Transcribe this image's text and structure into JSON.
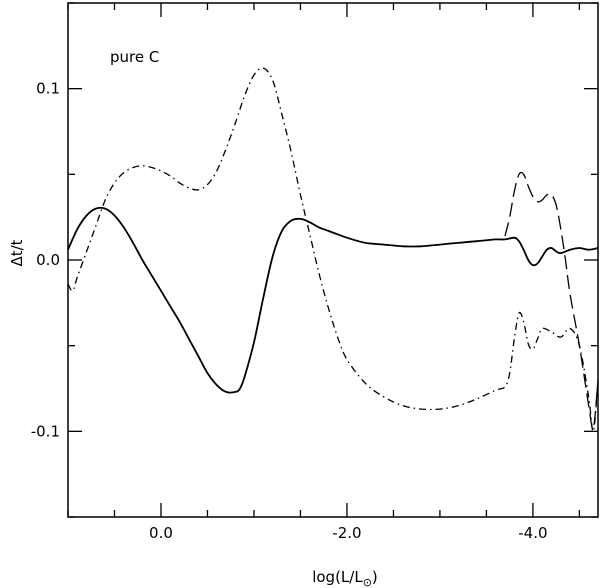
{
  "chart_data": {
    "type": "line",
    "xlabel": "log(L/L",
    "xlabel_sub": "⊙",
    "xlabel_close": ")",
    "ylabel": "Δt/t",
    "annotation": "pure C",
    "xlim": [
      1.0,
      -4.7
    ],
    "ylim": [
      -0.15,
      0.15
    ],
    "x_ticks": [
      0.0,
      -2.0,
      -4.0
    ],
    "x_tick_labels": [
      "0.0",
      "-2.0",
      "-4.0"
    ],
    "y_ticks": [
      -0.1,
      0.0,
      0.1
    ],
    "y_tick_labels": [
      "-0.1",
      "0.0",
      "0.1"
    ],
    "grid": false,
    "series": [
      {
        "style": "solid",
        "x": [
          1.0,
          0.9,
          0.8,
          0.7,
          0.6,
          0.5,
          0.4,
          0.3,
          0.2,
          0.1,
          0.0,
          -0.1,
          -0.2,
          -0.3,
          -0.4,
          -0.5,
          -0.6,
          -0.7,
          -0.8,
          -0.85,
          -0.9,
          -1.0,
          -1.1,
          -1.2,
          -1.3,
          -1.4,
          -1.5,
          -1.6,
          -1.7,
          -1.8,
          -1.9,
          -2.0,
          -2.2,
          -2.4,
          -2.6,
          -2.8,
          -3.0,
          -3.2,
          -3.4,
          -3.6,
          -3.7,
          -3.8,
          -3.85,
          -3.9,
          -3.95,
          -4.0,
          -4.05,
          -4.1,
          -4.15,
          -4.2,
          -4.25,
          -4.3,
          -4.4,
          -4.5,
          -4.6,
          -4.7
        ],
        "y": [
          0.006,
          0.018,
          0.026,
          0.03,
          0.03,
          0.026,
          0.019,
          0.01,
          0.0,
          -0.009,
          -0.018,
          -0.027,
          -0.036,
          -0.046,
          -0.056,
          -0.066,
          -0.073,
          -0.077,
          -0.077,
          -0.075,
          -0.068,
          -0.048,
          -0.022,
          0.002,
          0.017,
          0.023,
          0.024,
          0.022,
          0.019,
          0.017,
          0.015,
          0.013,
          0.01,
          0.009,
          0.008,
          0.008,
          0.009,
          0.01,
          0.011,
          0.012,
          0.012,
          0.013,
          0.011,
          0.006,
          0.0,
          -0.003,
          -0.002,
          0.002,
          0.006,
          0.007,
          0.005,
          0.004,
          0.006,
          0.007,
          0.006,
          0.007
        ]
      },
      {
        "style": "longdash",
        "x": [
          -3.7,
          -3.75,
          -3.8,
          -3.85,
          -3.9,
          -3.95,
          -4.0,
          -4.05,
          -4.1,
          -4.15,
          -4.2,
          -4.25,
          -4.3,
          -4.35,
          -4.4,
          -4.5,
          -4.6,
          -4.65,
          -4.7
        ],
        "y": [
          0.014,
          0.025,
          0.04,
          0.05,
          0.05,
          0.043,
          0.037,
          0.034,
          0.035,
          0.038,
          0.038,
          0.032,
          0.018,
          0.0,
          -0.02,
          -0.05,
          -0.085,
          -0.098,
          -0.07
        ]
      },
      {
        "style": "dashdot",
        "x": [
          1.0,
          0.95,
          0.9,
          0.8,
          0.7,
          0.6,
          0.5,
          0.4,
          0.3,
          0.2,
          0.1,
          0.0,
          -0.1,
          -0.2,
          -0.3,
          -0.4,
          -0.5,
          -0.6,
          -0.7,
          -0.8,
          -0.9,
          -1.0,
          -1.1,
          -1.2,
          -1.3,
          -1.4,
          -1.5,
          -1.6,
          -1.7,
          -1.8,
          -1.9,
          -2.0,
          -2.2,
          -2.4,
          -2.6,
          -2.8,
          -3.0,
          -3.2,
          -3.4,
          -3.6,
          -3.7,
          -3.75,
          -3.8,
          -3.85,
          -3.9,
          -3.95,
          -4.0,
          -4.05,
          -4.1,
          -4.2,
          -4.3,
          -4.4,
          -4.5,
          -4.6,
          -4.65,
          -4.7
        ],
        "y": [
          -0.014,
          -0.018,
          -0.01,
          0.005,
          0.02,
          0.035,
          0.045,
          0.051,
          0.054,
          0.055,
          0.054,
          0.052,
          0.049,
          0.045,
          0.042,
          0.041,
          0.044,
          0.052,
          0.065,
          0.08,
          0.096,
          0.108,
          0.112,
          0.105,
          0.085,
          0.063,
          0.038,
          0.015,
          -0.008,
          -0.028,
          -0.045,
          -0.058,
          -0.072,
          -0.08,
          -0.085,
          -0.087,
          -0.087,
          -0.085,
          -0.081,
          -0.076,
          -0.074,
          -0.066,
          -0.046,
          -0.031,
          -0.036,
          -0.049,
          -0.052,
          -0.046,
          -0.04,
          -0.042,
          -0.045,
          -0.04,
          -0.05,
          -0.08,
          -0.1,
          -0.07
        ]
      }
    ]
  }
}
